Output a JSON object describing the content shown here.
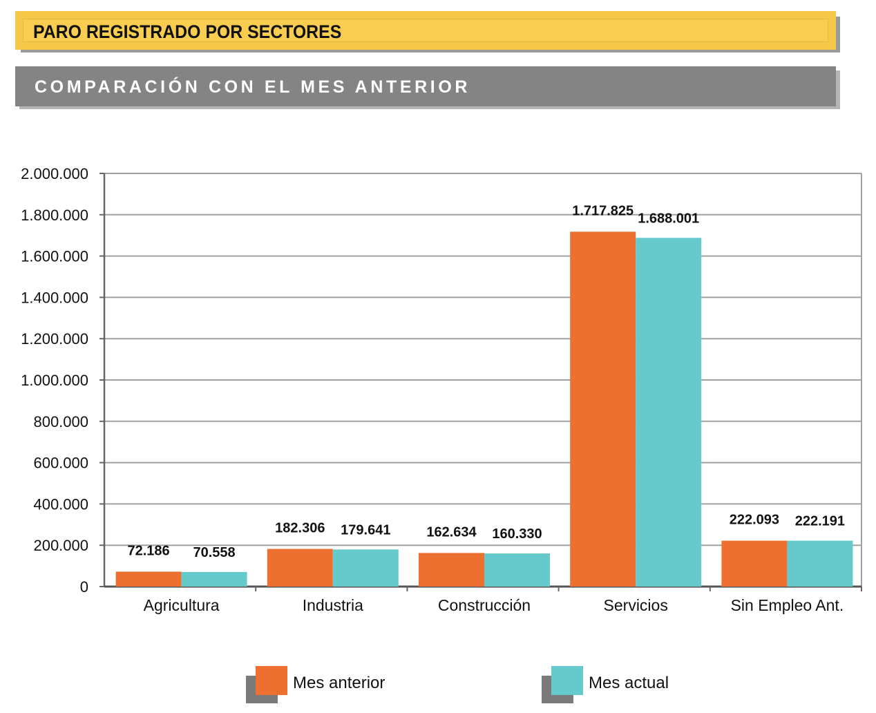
{
  "header": {
    "title": "PARO REGISTRADO POR SECTORES",
    "subtitle": "COMPARACIÓN CON EL MES ANTERIOR"
  },
  "colors": {
    "title_bg": "#f6c94a",
    "subtitle_bg": "#848484",
    "series_1": "#ed7030",
    "series_2": "#66c9cb",
    "grid": "#a0a0a0"
  },
  "chart_data": {
    "type": "bar",
    "categories": [
      "Agricultura",
      "Industria",
      "Construcción",
      "Servicios",
      "Sin Empleo Ant."
    ],
    "series": [
      {
        "name": "Mes anterior",
        "values": [
          72186,
          182306,
          162634,
          1717825,
          222093
        ],
        "labels": [
          "72.186",
          "182.306",
          "162.634",
          "1.717.825",
          "222.093"
        ]
      },
      {
        "name": "Mes actual",
        "values": [
          70558,
          179641,
          160330,
          1688001,
          222191
        ],
        "labels": [
          "70.558",
          "179.641",
          "160.330",
          "1.688.001",
          "222.191"
        ]
      }
    ],
    "ylim": [
      0,
      2000000
    ],
    "yticks": [
      0,
      200000,
      400000,
      600000,
      800000,
      1000000,
      1200000,
      1400000,
      1600000,
      1800000,
      2000000
    ],
    "ytick_labels": [
      "0",
      "200.000",
      "400.000",
      "600.000",
      "800.000",
      "1.000.000",
      "1.200.000",
      "1.400.000",
      "1.600.000",
      "1.800.000",
      "2.000.000"
    ],
    "grid": true,
    "legend": "bottom"
  }
}
